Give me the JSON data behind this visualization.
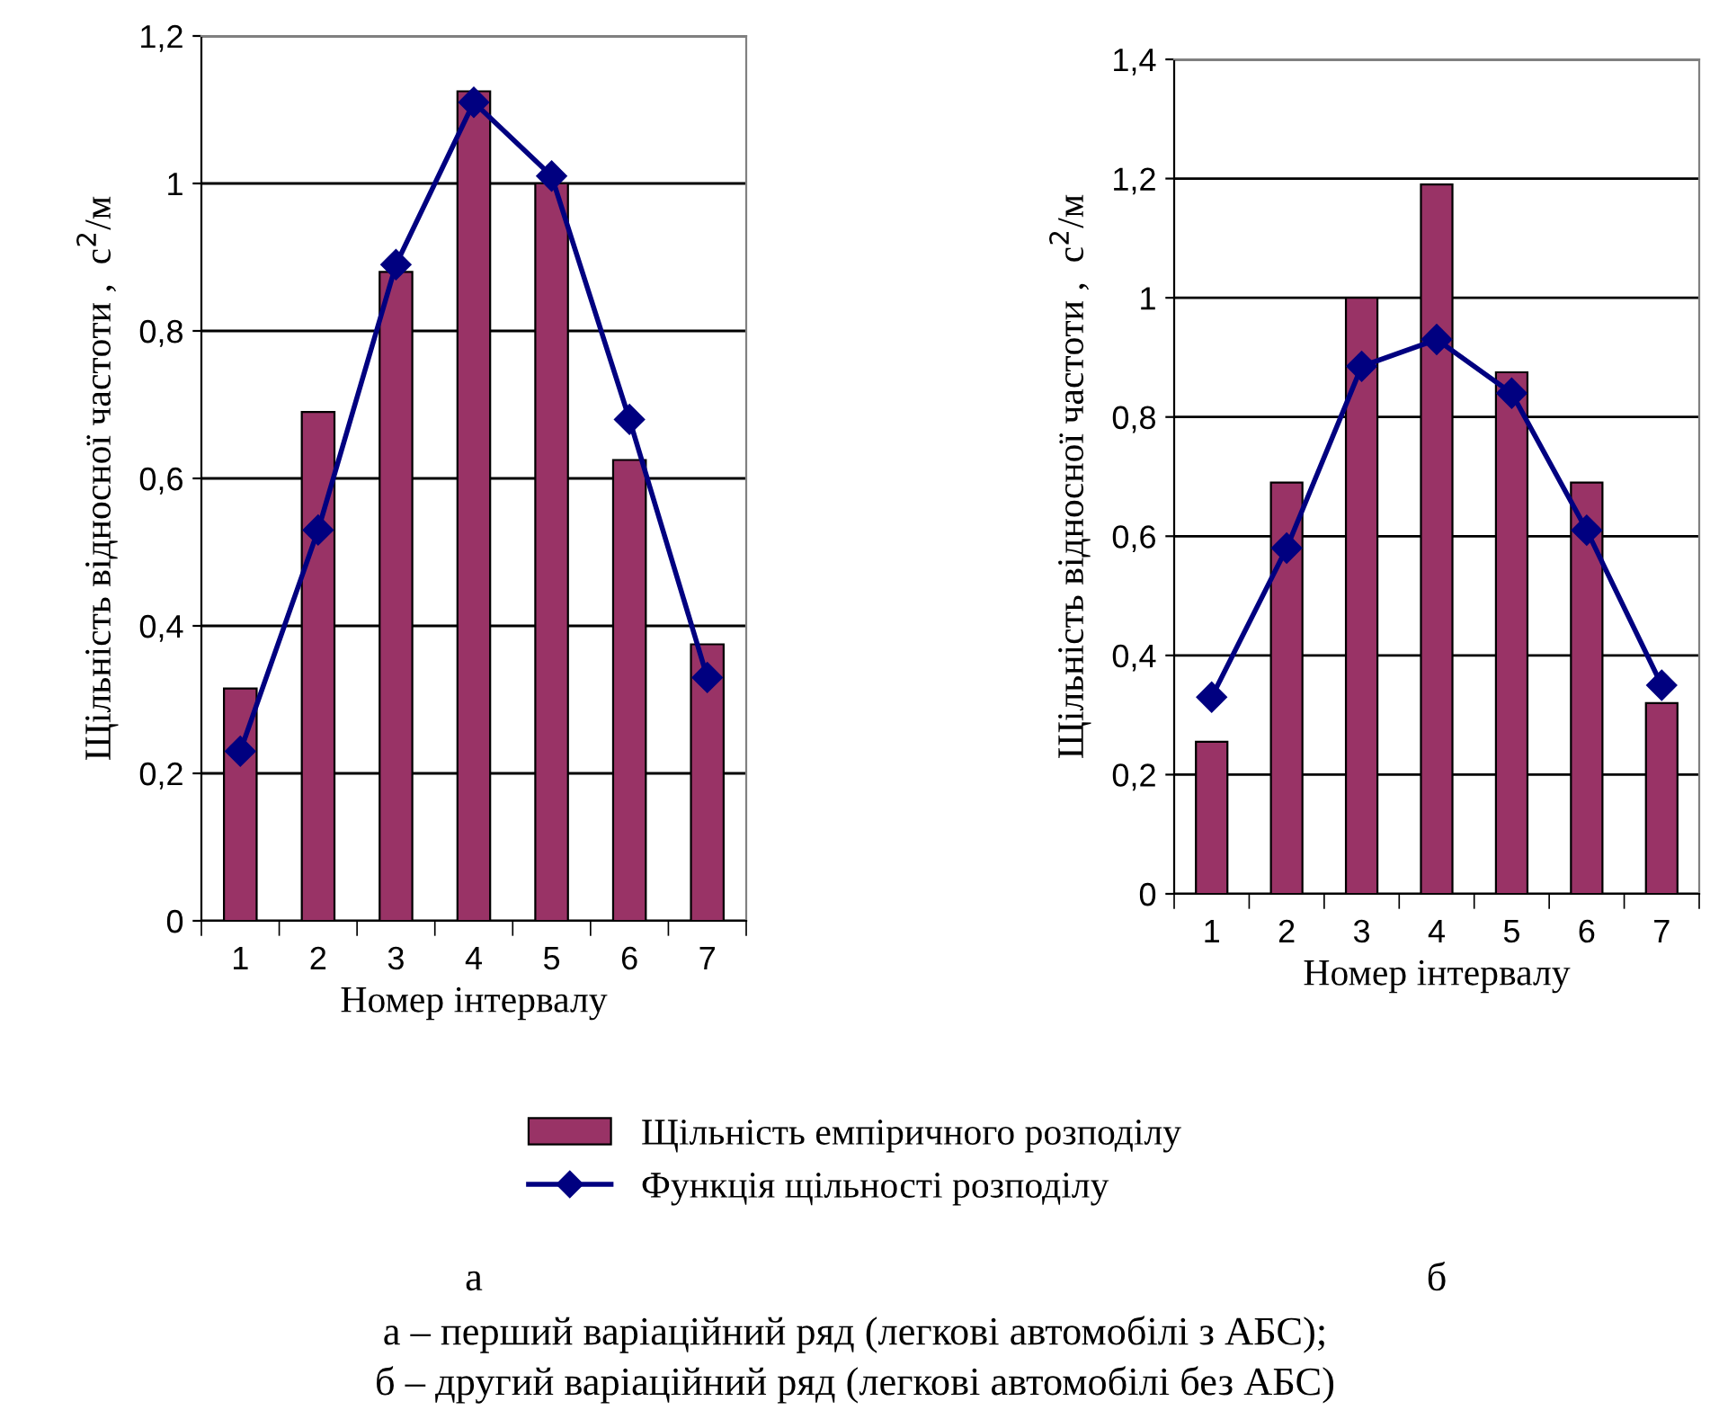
{
  "chart_data": [
    {
      "type": "bar",
      "categories": [
        "1",
        "2",
        "3",
        "4",
        "5",
        "6",
        "7"
      ],
      "xlabel": "Номер інтервалу",
      "ylabel": "Щільність відносної частоти ,  с$^{2}$/м",
      "ylim": [
        0,
        1.2
      ],
      "yticks": [
        {
          "value": 0,
          "label": "0"
        },
        {
          "value": 0.2,
          "label": "0,2"
        },
        {
          "value": 0.4,
          "label": "0,4"
        },
        {
          "value": 0.6,
          "label": "0,6"
        },
        {
          "value": 0.8,
          "label": "0,8"
        },
        {
          "value": 1,
          "label": "1"
        },
        {
          "value": 1.2,
          "label": "1,2"
        }
      ],
      "grid": "y",
      "legend": "bottom",
      "series": [
        {
          "name": "Щільність емпіричного розподілу",
          "color": "#993366",
          "values": [
            0.315,
            0.69,
            0.88,
            1.125,
            1.0,
            0.625,
            0.375
          ]
        },
        {
          "name": "Функція щільності розподілу",
          "type": "line",
          "color": "#000080",
          "marker": "diamond",
          "values": [
            0.23,
            0.53,
            0.89,
            1.11,
            1.01,
            0.68,
            0.33
          ]
        }
      ],
      "annotations": [
        "а",
        "а – перший варіаційний ряд (легкові автомобілі з АБС);",
        "б – другий варіаційний ряд (легкові автомобілі без АБС)"
      ]
    },
    {
      "type": "bar",
      "categories": [
        "1",
        "2",
        "3",
        "4",
        "5",
        "6",
        "7"
      ],
      "xlabel": "Номер інтервалу",
      "ylabel": "Щільність відносної частоти ,  с$^{2}$/м",
      "ylim": [
        0,
        1.4
      ],
      "yticks": [
        {
          "value": 0,
          "label": "0"
        },
        {
          "value": 0.2,
          "label": "0,2"
        },
        {
          "value": 0.4,
          "label": "0,4"
        },
        {
          "value": 0.6,
          "label": "0,6"
        },
        {
          "value": 0.8,
          "label": "0,8"
        },
        {
          "value": 1,
          "label": "1"
        },
        {
          "value": 1.2,
          "label": "1,2"
        },
        {
          "value": 1.4,
          "label": "1,4"
        }
      ],
      "grid": "y",
      "series": [
        {
          "color": "#993366",
          "values": [
            0.255,
            0.69,
            1.0,
            1.19,
            0.875,
            0.69,
            0.32
          ]
        },
        {
          "type": "line",
          "color": "#000080",
          "marker": "diamond",
          "values": [
            0.33,
            0.58,
            0.885,
            0.93,
            0.84,
            0.61,
            0.35
          ]
        }
      ],
      "annotations": [
        "б"
      ]
    }
  ]
}
